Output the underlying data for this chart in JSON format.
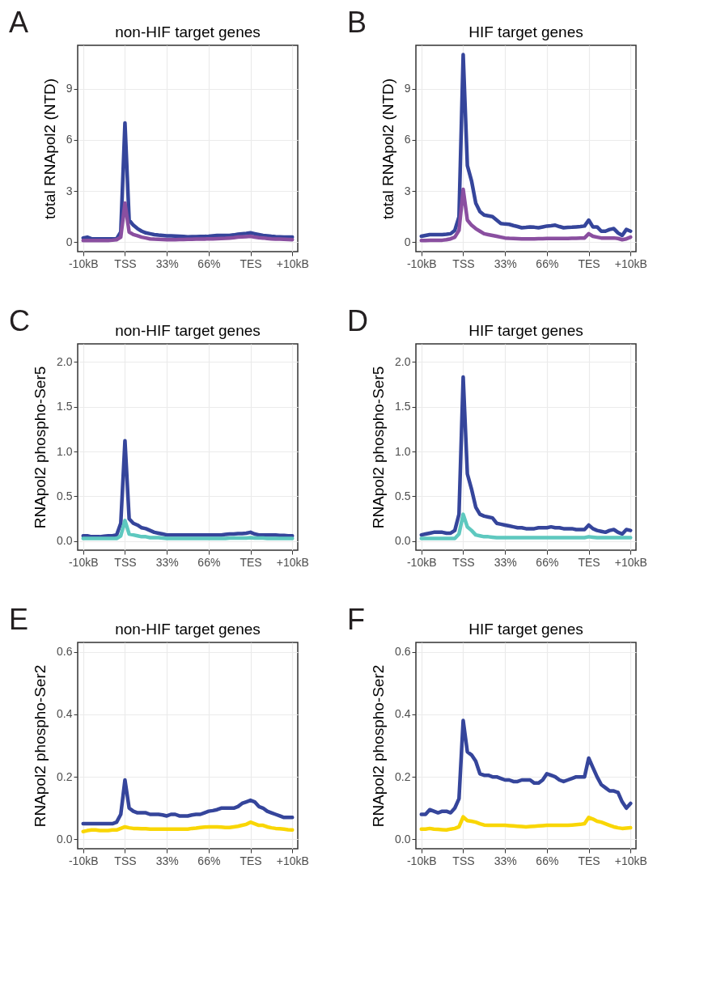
{
  "chart_data": [
    {
      "type": "line",
      "title": "non-HIF target genes",
      "ylabel": "total RNApol2 (NTD)",
      "annotations": [
        "A"
      ],
      "ylim": [
        -0.55,
        11.55
      ],
      "yticks": [
        0,
        3,
        6,
        9
      ],
      "grid": true,
      "line_style": "solid",
      "marker": "none",
      "categories": [
        "-10kB",
        null,
        null,
        null,
        null,
        null,
        null,
        null,
        null,
        null,
        "TSS",
        null,
        null,
        null,
        null,
        null,
        null,
        null,
        null,
        null,
        "33%",
        null,
        null,
        null,
        null,
        null,
        null,
        null,
        null,
        null,
        "66%",
        null,
        null,
        null,
        null,
        null,
        null,
        null,
        null,
        null,
        "TES",
        null,
        null,
        null,
        null,
        null,
        null,
        null,
        null,
        null,
        "+10kB"
      ],
      "series": [
        {
          "color": "#35459b",
          "values": [
            0.25,
            0.3,
            0.2,
            0.2,
            0.2,
            0.2,
            0.2,
            0.2,
            0.2,
            0.6,
            7.0,
            1.3,
            1.0,
            0.8,
            0.65,
            0.55,
            0.5,
            0.45,
            0.42,
            0.4,
            0.38,
            0.37,
            0.36,
            0.35,
            0.34,
            0.32,
            0.33,
            0.33,
            0.34,
            0.34,
            0.35,
            0.38,
            0.4,
            0.4,
            0.4,
            0.4,
            0.43,
            0.47,
            0.5,
            0.52,
            0.55,
            0.5,
            0.45,
            0.4,
            0.38,
            0.35,
            0.33,
            0.32,
            0.3,
            0.3,
            0.3
          ]
        },
        {
          "color": "#8a4fa0",
          "values": [
            0.1,
            0.1,
            0.1,
            0.1,
            0.1,
            0.1,
            0.1,
            0.12,
            0.15,
            0.3,
            2.3,
            0.6,
            0.45,
            0.38,
            0.3,
            0.25,
            0.2,
            0.18,
            0.17,
            0.16,
            0.15,
            0.15,
            0.15,
            0.16,
            0.16,
            0.17,
            0.17,
            0.18,
            0.19,
            0.19,
            0.2,
            0.2,
            0.21,
            0.22,
            0.23,
            0.25,
            0.27,
            0.3,
            0.32,
            0.33,
            0.35,
            0.3,
            0.27,
            0.25,
            0.22,
            0.2,
            0.19,
            0.18,
            0.17,
            0.16,
            0.15
          ]
        }
      ]
    },
    {
      "type": "line",
      "title": "HIF target genes",
      "ylabel": "total RNApol2 (NTD)",
      "annotations": [
        "B"
      ],
      "ylim": [
        -0.55,
        11.55
      ],
      "yticks": [
        0,
        3,
        6,
        9
      ],
      "grid": true,
      "line_style": "solid",
      "marker": "none",
      "categories": [
        "-10kB",
        null,
        null,
        null,
        null,
        null,
        null,
        null,
        null,
        null,
        "TSS",
        null,
        null,
        null,
        null,
        null,
        null,
        null,
        null,
        null,
        "33%",
        null,
        null,
        null,
        null,
        null,
        null,
        null,
        null,
        null,
        "66%",
        null,
        null,
        null,
        null,
        null,
        null,
        null,
        null,
        null,
        "TES",
        null,
        null,
        null,
        null,
        null,
        null,
        null,
        null,
        null,
        "+10kB"
      ],
      "series": [
        {
          "color": "#35459b",
          "values": [
            0.35,
            0.4,
            0.45,
            0.45,
            0.45,
            0.45,
            0.47,
            0.5,
            0.7,
            1.5,
            11.0,
            4.5,
            3.6,
            2.3,
            1.8,
            1.6,
            1.55,
            1.5,
            1.3,
            1.1,
            1.07,
            1.05,
            0.98,
            0.92,
            0.85,
            0.87,
            0.9,
            0.88,
            0.85,
            0.9,
            0.95,
            0.97,
            1.0,
            0.92,
            0.85,
            0.87,
            0.88,
            0.9,
            0.92,
            0.95,
            1.3,
            0.9,
            0.9,
            0.65,
            0.65,
            0.75,
            0.8,
            0.55,
            0.4,
            0.75,
            0.65
          ]
        },
        {
          "color": "#8a4fa0",
          "values": [
            0.1,
            0.1,
            0.11,
            0.11,
            0.12,
            0.12,
            0.15,
            0.2,
            0.3,
            0.7,
            3.1,
            1.3,
            1.0,
            0.8,
            0.65,
            0.5,
            0.45,
            0.4,
            0.35,
            0.3,
            0.25,
            0.23,
            0.22,
            0.21,
            0.2,
            0.2,
            0.2,
            0.2,
            0.21,
            0.21,
            0.22,
            0.22,
            0.22,
            0.22,
            0.22,
            0.22,
            0.23,
            0.23,
            0.24,
            0.25,
            0.5,
            0.35,
            0.3,
            0.25,
            0.25,
            0.25,
            0.25,
            0.22,
            0.15,
            0.2,
            0.3
          ]
        }
      ]
    },
    {
      "type": "line",
      "title": "non-HIF target genes",
      "ylabel": "RNApol2 phospho-Ser5",
      "annotations": [
        "C"
      ],
      "ylim": [
        -0.1,
        2.2
      ],
      "yticks": [
        {
          "value": 0,
          "label": "0.0"
        },
        0.5,
        {
          "value": 1,
          "label": "1.0"
        },
        1.5,
        {
          "value": 2,
          "label": "2.0"
        }
      ],
      "grid": true,
      "line_style": "solid",
      "marker": "none",
      "categories": [
        "-10kB",
        null,
        null,
        null,
        null,
        null,
        null,
        null,
        null,
        null,
        "TSS",
        null,
        null,
        null,
        null,
        null,
        null,
        null,
        null,
        null,
        "33%",
        null,
        null,
        null,
        null,
        null,
        null,
        null,
        null,
        null,
        "66%",
        null,
        null,
        null,
        null,
        null,
        null,
        null,
        null,
        null,
        "TES",
        null,
        null,
        null,
        null,
        null,
        null,
        null,
        null,
        null,
        "+10kB"
      ],
      "series": [
        {
          "color": "#35459b",
          "values": [
            0.06,
            0.06,
            0.05,
            0.05,
            0.05,
            0.055,
            0.06,
            0.06,
            0.07,
            0.2,
            1.12,
            0.25,
            0.2,
            0.18,
            0.15,
            0.14,
            0.12,
            0.1,
            0.09,
            0.08,
            0.07,
            0.07,
            0.07,
            0.07,
            0.07,
            0.07,
            0.07,
            0.07,
            0.07,
            0.07,
            0.07,
            0.07,
            0.07,
            0.07,
            0.075,
            0.08,
            0.08,
            0.085,
            0.085,
            0.09,
            0.1,
            0.08,
            0.07,
            0.07,
            0.07,
            0.07,
            0.07,
            0.065,
            0.065,
            0.06,
            0.06
          ]
        },
        {
          "color": "#5ec8bf",
          "values": [
            0.03,
            0.03,
            0.03,
            0.03,
            0.03,
            0.03,
            0.03,
            0.03,
            0.03,
            0.06,
            0.23,
            0.08,
            0.07,
            0.06,
            0.05,
            0.05,
            0.04,
            0.04,
            0.04,
            0.035,
            0.03,
            0.03,
            0.03,
            0.03,
            0.03,
            0.03,
            0.03,
            0.03,
            0.03,
            0.03,
            0.03,
            0.03,
            0.03,
            0.03,
            0.03,
            0.035,
            0.035,
            0.035,
            0.035,
            0.035,
            0.04,
            0.035,
            0.035,
            0.035,
            0.03,
            0.03,
            0.03,
            0.03,
            0.03,
            0.03,
            0.03
          ]
        }
      ]
    },
    {
      "type": "line",
      "title": "HIF target genes",
      "ylabel": "RNApol2 phospho-Ser5",
      "annotations": [
        "D"
      ],
      "ylim": [
        -0.1,
        2.2
      ],
      "yticks": [
        {
          "value": 0,
          "label": "0.0"
        },
        0.5,
        {
          "value": 1,
          "label": "1.0"
        },
        1.5,
        {
          "value": 2,
          "label": "2.0"
        }
      ],
      "grid": true,
      "line_style": "solid",
      "marker": "none",
      "categories": [
        "-10kB",
        null,
        null,
        null,
        null,
        null,
        null,
        null,
        null,
        null,
        "TSS",
        null,
        null,
        null,
        null,
        null,
        null,
        null,
        null,
        null,
        "33%",
        null,
        null,
        null,
        null,
        null,
        null,
        null,
        null,
        null,
        "66%",
        null,
        null,
        null,
        null,
        null,
        null,
        null,
        null,
        null,
        "TES",
        null,
        null,
        null,
        null,
        null,
        null,
        null,
        null,
        null,
        "+10kB"
      ],
      "series": [
        {
          "color": "#35459b",
          "values": [
            0.07,
            0.08,
            0.09,
            0.1,
            0.1,
            0.1,
            0.09,
            0.09,
            0.12,
            0.3,
            1.83,
            0.75,
            0.58,
            0.38,
            0.3,
            0.28,
            0.27,
            0.26,
            0.2,
            0.19,
            0.18,
            0.17,
            0.16,
            0.15,
            0.15,
            0.14,
            0.14,
            0.14,
            0.15,
            0.15,
            0.15,
            0.16,
            0.15,
            0.15,
            0.14,
            0.14,
            0.14,
            0.13,
            0.13,
            0.13,
            0.18,
            0.14,
            0.12,
            0.11,
            0.1,
            0.12,
            0.13,
            0.1,
            0.08,
            0.13,
            0.12
          ]
        },
        {
          "color": "#5ec8bf",
          "values": [
            0.03,
            0.03,
            0.03,
            0.03,
            0.03,
            0.03,
            0.03,
            0.03,
            0.03,
            0.08,
            0.3,
            0.16,
            0.12,
            0.07,
            0.06,
            0.05,
            0.05,
            0.045,
            0.04,
            0.04,
            0.04,
            0.04,
            0.04,
            0.04,
            0.04,
            0.04,
            0.04,
            0.04,
            0.04,
            0.04,
            0.04,
            0.04,
            0.04,
            0.04,
            0.04,
            0.04,
            0.04,
            0.04,
            0.04,
            0.04,
            0.05,
            0.045,
            0.04,
            0.04,
            0.04,
            0.04,
            0.04,
            0.04,
            0.04,
            0.04,
            0.04
          ]
        }
      ]
    },
    {
      "type": "line",
      "title": "non-HIF target genes",
      "ylabel": "RNApol2 phospho-Ser2",
      "annotations": [
        "E"
      ],
      "ylim": [
        -0.03,
        0.63
      ],
      "yticks": [
        {
          "value": 0,
          "label": "0.0"
        },
        0.2,
        0.4,
        0.6
      ],
      "grid": true,
      "line_style": "solid",
      "marker": "none",
      "categories": [
        "-10kB",
        null,
        null,
        null,
        null,
        null,
        null,
        null,
        null,
        null,
        "TSS",
        null,
        null,
        null,
        null,
        null,
        null,
        null,
        null,
        null,
        "33%",
        null,
        null,
        null,
        null,
        null,
        null,
        null,
        null,
        null,
        "66%",
        null,
        null,
        null,
        null,
        null,
        null,
        null,
        null,
        null,
        "TES",
        null,
        null,
        null,
        null,
        null,
        null,
        null,
        null,
        null,
        "+10kB"
      ],
      "series": [
        {
          "color": "#35459b",
          "values": [
            0.05,
            0.05,
            0.05,
            0.05,
            0.05,
            0.05,
            0.05,
            0.05,
            0.055,
            0.08,
            0.19,
            0.1,
            0.09,
            0.085,
            0.085,
            0.085,
            0.08,
            0.08,
            0.08,
            0.078,
            0.075,
            0.08,
            0.08,
            0.075,
            0.075,
            0.075,
            0.078,
            0.08,
            0.08,
            0.085,
            0.09,
            0.092,
            0.095,
            0.1,
            0.1,
            0.1,
            0.1,
            0.105,
            0.115,
            0.12,
            0.125,
            0.12,
            0.105,
            0.1,
            0.09,
            0.085,
            0.08,
            0.075,
            0.07,
            0.07,
            0.07
          ]
        },
        {
          "color": "#f9d605",
          "values": [
            0.025,
            0.028,
            0.03,
            0.03,
            0.028,
            0.028,
            0.028,
            0.03,
            0.03,
            0.035,
            0.04,
            0.037,
            0.035,
            0.035,
            0.034,
            0.034,
            0.033,
            0.033,
            0.033,
            0.033,
            0.033,
            0.033,
            0.033,
            0.033,
            0.033,
            0.033,
            0.035,
            0.036,
            0.038,
            0.039,
            0.04,
            0.04,
            0.04,
            0.039,
            0.038,
            0.038,
            0.04,
            0.042,
            0.045,
            0.048,
            0.055,
            0.05,
            0.045,
            0.045,
            0.04,
            0.037,
            0.035,
            0.034,
            0.033,
            0.031,
            0.03
          ]
        }
      ]
    },
    {
      "type": "line",
      "title": "HIF target genes",
      "ylabel": "RNApol2 phospho-Ser2",
      "annotations": [
        "F"
      ],
      "ylim": [
        -0.03,
        0.63
      ],
      "yticks": [
        {
          "value": 0,
          "label": "0.0"
        },
        0.2,
        0.4,
        0.6
      ],
      "grid": true,
      "line_style": "solid",
      "marker": "none",
      "categories": [
        "-10kB",
        null,
        null,
        null,
        null,
        null,
        null,
        null,
        null,
        null,
        "TSS",
        null,
        null,
        null,
        null,
        null,
        null,
        null,
        null,
        null,
        "33%",
        null,
        null,
        null,
        null,
        null,
        null,
        null,
        null,
        null,
        "66%",
        null,
        null,
        null,
        null,
        null,
        null,
        null,
        null,
        null,
        "TES",
        null,
        null,
        null,
        null,
        null,
        null,
        null,
        null,
        null,
        "+10kB"
      ],
      "series": [
        {
          "color": "#35459b",
          "values": [
            0.08,
            0.08,
            0.095,
            0.09,
            0.085,
            0.09,
            0.09,
            0.085,
            0.1,
            0.13,
            0.38,
            0.28,
            0.27,
            0.25,
            0.21,
            0.205,
            0.205,
            0.2,
            0.2,
            0.195,
            0.19,
            0.19,
            0.185,
            0.185,
            0.19,
            0.19,
            0.19,
            0.18,
            0.18,
            0.19,
            0.21,
            0.205,
            0.2,
            0.19,
            0.185,
            0.19,
            0.195,
            0.2,
            0.2,
            0.2,
            0.26,
            0.23,
            0.2,
            0.175,
            0.165,
            0.155,
            0.155,
            0.15,
            0.12,
            0.1,
            0.115
          ]
        },
        {
          "color": "#f9d605",
          "values": [
            0.033,
            0.033,
            0.035,
            0.033,
            0.032,
            0.031,
            0.03,
            0.033,
            0.035,
            0.04,
            0.072,
            0.06,
            0.058,
            0.055,
            0.05,
            0.046,
            0.045,
            0.045,
            0.045,
            0.045,
            0.045,
            0.044,
            0.043,
            0.042,
            0.041,
            0.04,
            0.041,
            0.042,
            0.043,
            0.044,
            0.045,
            0.045,
            0.045,
            0.045,
            0.045,
            0.045,
            0.046,
            0.047,
            0.048,
            0.05,
            0.07,
            0.065,
            0.058,
            0.055,
            0.05,
            0.045,
            0.04,
            0.037,
            0.035,
            0.036,
            0.037
          ]
        }
      ]
    }
  ]
}
